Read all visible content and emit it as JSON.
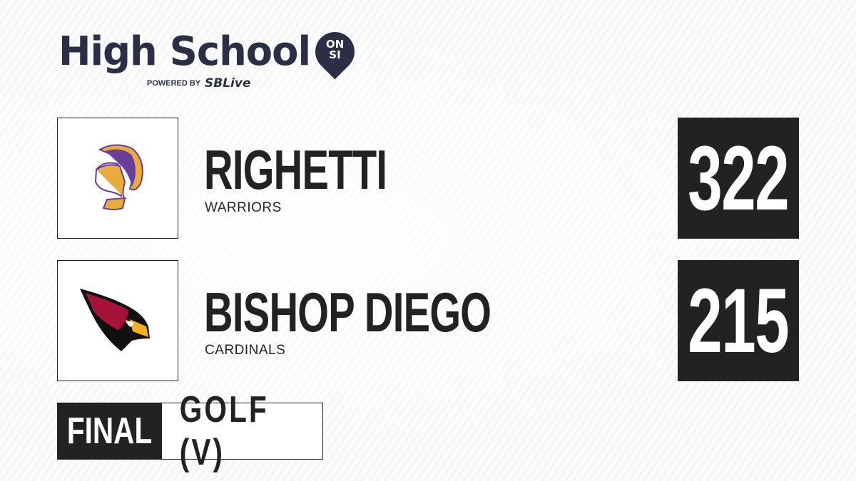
{
  "brand": {
    "title": "High School",
    "pin": "ON SI",
    "powered_by": "POWERED BY",
    "partner_a": "S",
    "partner_b": "SBLive"
  },
  "teams": [
    {
      "name": "RIGHETTI",
      "mascot": "WARRIORS",
      "score": "322",
      "logo": "trojan-helmet-logo",
      "colors": [
        "#6a3d98",
        "#e8ac3c"
      ]
    },
    {
      "name": "BISHOP DIEGO",
      "mascot": "CARDINALS",
      "score": "215",
      "logo": "cardinal-bird-logo",
      "colors": [
        "#a5123a",
        "#f3b21b"
      ]
    }
  ],
  "status": {
    "label": "FINAL",
    "sport": "GOLF (V)"
  },
  "colors": {
    "dark": "#222222",
    "brand": "#2b2f45",
    "accent": "#29a8e0"
  }
}
